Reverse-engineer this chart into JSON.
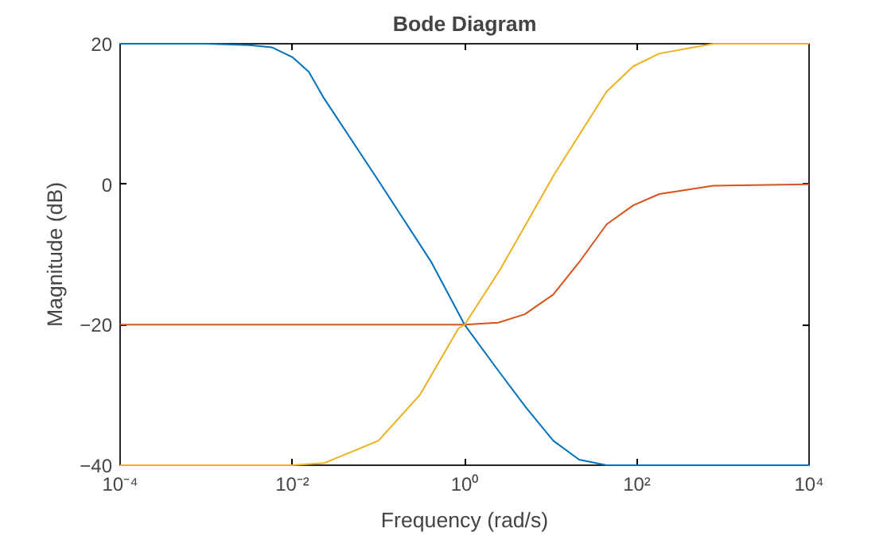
{
  "chart_data": {
    "type": "line",
    "title": "Bode Diagram",
    "xlabel": "Frequency (rad/s)",
    "ylabel": "Magnitude (dB)",
    "log": "x",
    "grid": false,
    "marker": "none",
    "line_style": "solid",
    "xlim": [
      0.0001,
      10000
    ],
    "ylim": [
      -40,
      20
    ],
    "xticks": [
      {
        "value": 0.0001,
        "label": "10⁻⁴"
      },
      {
        "value": 0.01,
        "label": "10⁻²"
      },
      {
        "value": 1,
        "label": "10⁰"
      },
      {
        "value": 100,
        "label": "10²"
      },
      {
        "value": 10000,
        "label": "10⁴"
      }
    ],
    "yticks": [
      -40,
      -20,
      0,
      20
    ],
    "series": [
      {
        "color": "#0072bd",
        "x": [
          0.0001,
          0.001,
          0.00316,
          0.00575,
          0.01,
          0.0155,
          0.0234,
          0.1,
          0.407,
          1,
          2.45,
          5.25,
          10.7,
          21.4,
          44.7,
          100,
          1000,
          10000
        ],
        "values": [
          20,
          20,
          19.8,
          19.5,
          18.1,
          16,
          12.2,
          0.5,
          -11,
          -20,
          -26.5,
          -31.9,
          -36.5,
          -39.2,
          -40,
          -40,
          -40,
          -40
        ]
      },
      {
        "color": "#d95319",
        "x": [
          0.0001,
          1,
          2.45,
          5.01,
          10.7,
          21.4,
          44.7,
          91.2,
          182,
          776,
          10000
        ],
        "values": [
          -20,
          -20,
          -19.7,
          -18.5,
          -15.7,
          -11.1,
          -5.7,
          -3,
          -1.4,
          -0.2,
          0
        ]
      },
      {
        "color": "#edb120",
        "x": [
          0.0001,
          0.01,
          0.0234,
          0.1,
          0.302,
          0.851,
          1,
          2.57,
          11,
          44.7,
          91.2,
          182,
          776,
          10000
        ],
        "values": [
          -40,
          -40,
          -39.7,
          -36.5,
          -30,
          -20.5,
          -20,
          -12.2,
          1.4,
          13.2,
          16.8,
          18.6,
          20,
          20
        ]
      }
    ]
  }
}
